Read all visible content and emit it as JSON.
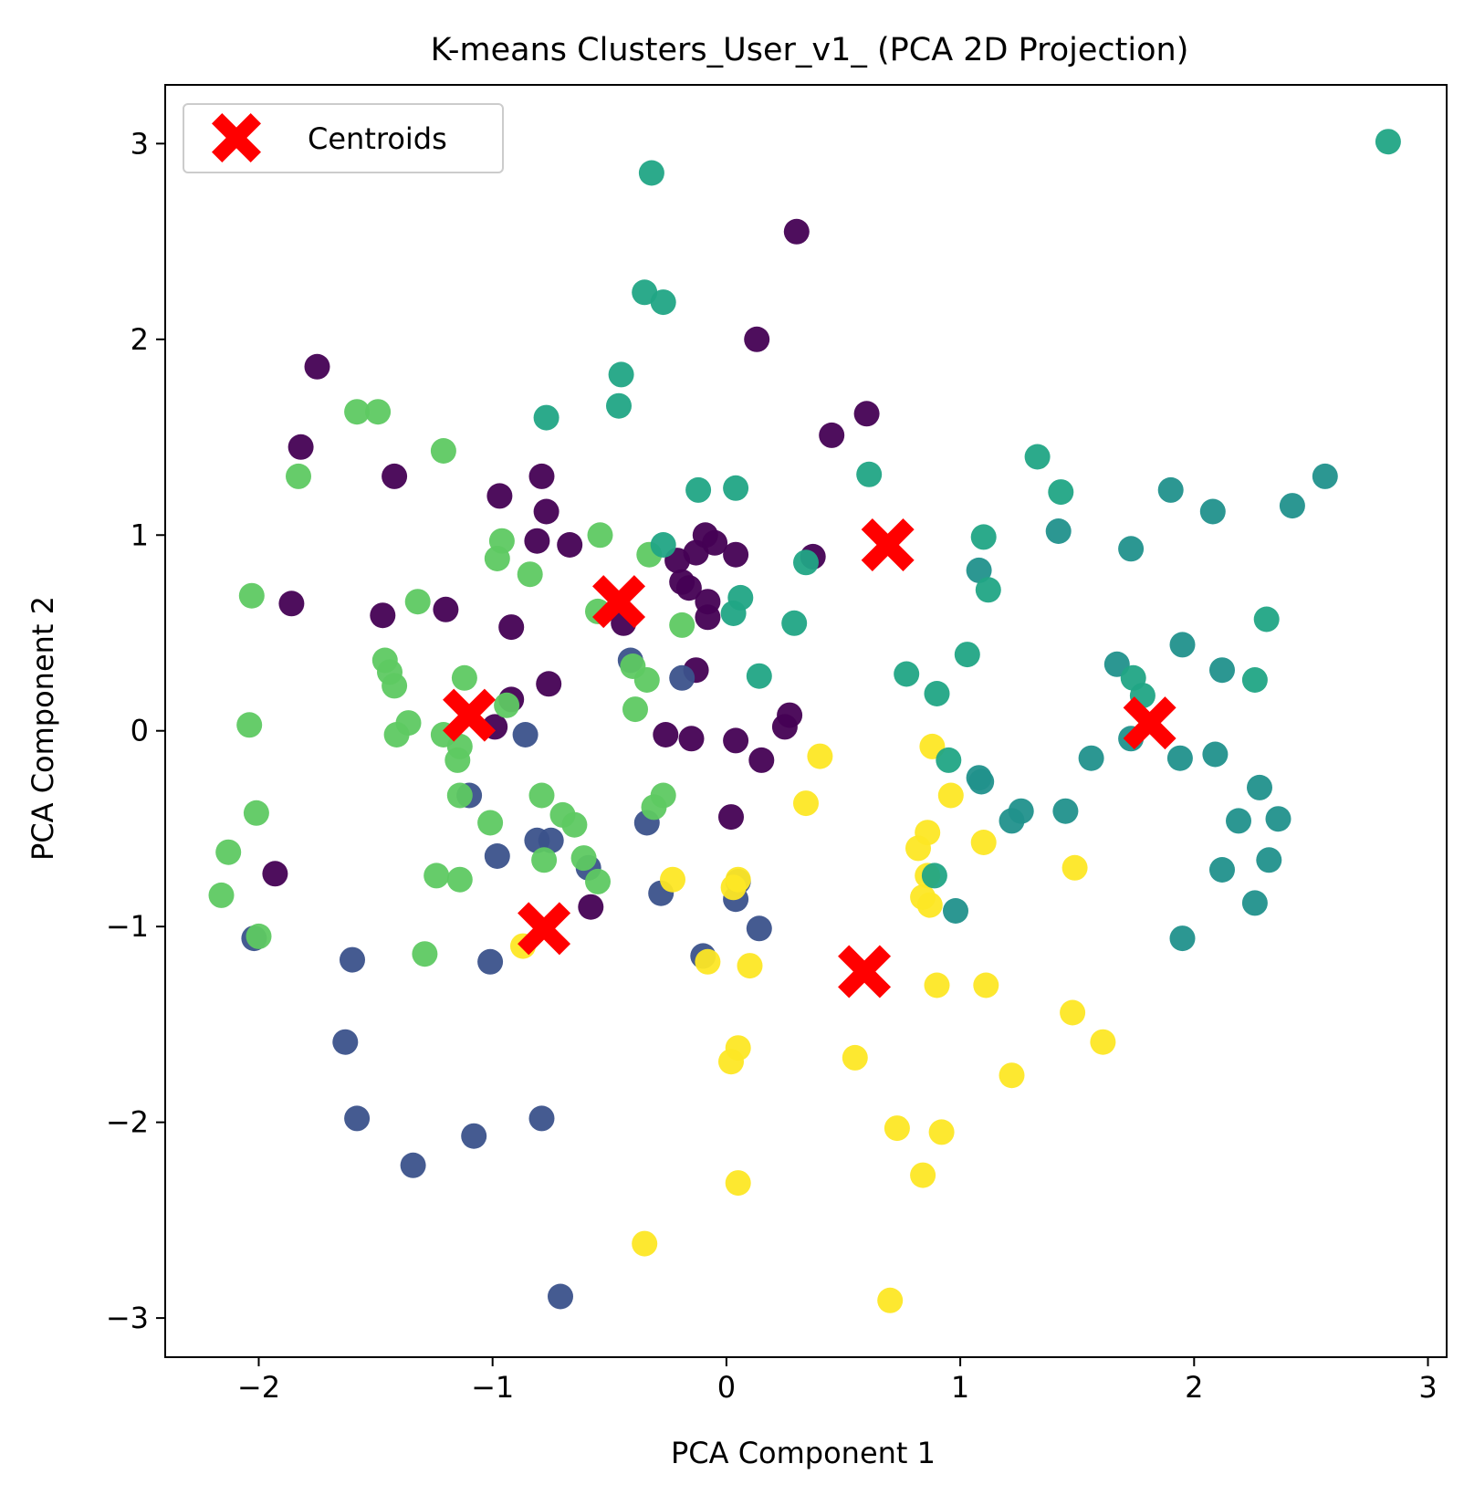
{
  "chart_data": {
    "type": "scatter",
    "title": "K-means Clusters_User_v1_ (PCA 2D Projection)",
    "xlabel": "PCA Component 1",
    "ylabel": "PCA Component 2",
    "xlim": [
      -2.4,
      3.08
    ],
    "ylim": [
      -3.2,
      3.3
    ],
    "grid": false,
    "legend": {
      "placement": "top-left",
      "entries": [
        "Centroids"
      ]
    },
    "xticks": [
      -2,
      -1,
      0,
      1,
      2,
      3
    ],
    "yticks": [
      -3,
      -2,
      -1,
      0,
      1,
      2,
      3
    ],
    "tick_labels_x": [
      "−2",
      "−1",
      "0",
      "1",
      "2",
      "3"
    ],
    "tick_labels_y": [
      "−3",
      "−2",
      "−1",
      "0",
      "1",
      "2",
      "3"
    ],
    "cluster_colors": [
      "#440154",
      "#3b528b",
      "#21918c",
      "#5ec962",
      "#fde725",
      "#21a585"
    ],
    "centroid_color": "#ff0000",
    "points": [
      {
        "cluster": 0,
        "x": -1.75,
        "y": 1.86
      },
      {
        "cluster": 0,
        "x": -1.82,
        "y": 1.45
      },
      {
        "cluster": 0,
        "x": -1.42,
        "y": 1.3
      },
      {
        "cluster": 0,
        "x": -1.86,
        "y": 0.65
      },
      {
        "cluster": 0,
        "x": -1.47,
        "y": 0.59
      },
      {
        "cluster": 0,
        "x": -1.2,
        "y": 0.62
      },
      {
        "cluster": 0,
        "x": -0.97,
        "y": 1.2
      },
      {
        "cluster": 0,
        "x": -0.79,
        "y": 1.3
      },
      {
        "cluster": 0,
        "x": -0.77,
        "y": 1.12
      },
      {
        "cluster": 0,
        "x": -0.81,
        "y": 0.97
      },
      {
        "cluster": 0,
        "x": -0.67,
        "y": 0.95
      },
      {
        "cluster": 0,
        "x": -0.92,
        "y": 0.53
      },
      {
        "cluster": 0,
        "x": -0.92,
        "y": 0.16
      },
      {
        "cluster": 0,
        "x": -0.76,
        "y": 0.24
      },
      {
        "cluster": 0,
        "x": -0.99,
        "y": 0.02
      },
      {
        "cluster": 0,
        "x": -1.93,
        "y": -0.73
      },
      {
        "cluster": 0,
        "x": -0.58,
        "y": -0.9
      },
      {
        "cluster": 0,
        "x": -0.44,
        "y": 0.55
      },
      {
        "cluster": 0,
        "x": -0.21,
        "y": 0.87
      },
      {
        "cluster": 0,
        "x": -0.13,
        "y": 0.91
      },
      {
        "cluster": 0,
        "x": -0.09,
        "y": 1.0
      },
      {
        "cluster": 0,
        "x": -0.05,
        "y": 0.96
      },
      {
        "cluster": 0,
        "x": 0.04,
        "y": 0.9
      },
      {
        "cluster": 0,
        "x": -0.19,
        "y": 0.76
      },
      {
        "cluster": 0,
        "x": -0.16,
        "y": 0.73
      },
      {
        "cluster": 0,
        "x": -0.08,
        "y": 0.66
      },
      {
        "cluster": 0,
        "x": -0.08,
        "y": 0.58
      },
      {
        "cluster": 0,
        "x": -0.13,
        "y": 0.31
      },
      {
        "cluster": 0,
        "x": -0.26,
        "y": -0.02
      },
      {
        "cluster": 0,
        "x": -0.15,
        "y": -0.04
      },
      {
        "cluster": 0,
        "x": 0.04,
        "y": -0.05
      },
      {
        "cluster": 0,
        "x": 0.15,
        "y": -0.15
      },
      {
        "cluster": 0,
        "x": 0.02,
        "y": -0.44
      },
      {
        "cluster": 0,
        "x": 0.27,
        "y": 0.08
      },
      {
        "cluster": 0,
        "x": 0.25,
        "y": 0.02
      },
      {
        "cluster": 0,
        "x": 0.3,
        "y": 2.55
      },
      {
        "cluster": 0,
        "x": 0.13,
        "y": 2.0
      },
      {
        "cluster": 0,
        "x": 0.45,
        "y": 1.51
      },
      {
        "cluster": 0,
        "x": 0.6,
        "y": 1.62
      },
      {
        "cluster": 0,
        "x": 0.37,
        "y": 0.89
      },
      {
        "cluster": 1,
        "x": -2.02,
        "y": -1.06
      },
      {
        "cluster": 1,
        "x": -1.6,
        "y": -1.17
      },
      {
        "cluster": 1,
        "x": -1.63,
        "y": -1.59
      },
      {
        "cluster": 1,
        "x": -1.58,
        "y": -1.98
      },
      {
        "cluster": 1,
        "x": -1.34,
        "y": -2.22
      },
      {
        "cluster": 1,
        "x": -1.08,
        "y": -2.07
      },
      {
        "cluster": 1,
        "x": -1.01,
        "y": -1.18
      },
      {
        "cluster": 1,
        "x": -0.98,
        "y": -0.64
      },
      {
        "cluster": 1,
        "x": -1.1,
        "y": -0.33
      },
      {
        "cluster": 1,
        "x": -0.86,
        "y": -0.02
      },
      {
        "cluster": 1,
        "x": -0.81,
        "y": -0.56
      },
      {
        "cluster": 1,
        "x": -0.75,
        "y": -0.56
      },
      {
        "cluster": 1,
        "x": -0.59,
        "y": -0.7
      },
      {
        "cluster": 1,
        "x": -0.79,
        "y": -1.98
      },
      {
        "cluster": 1,
        "x": -0.71,
        "y": -2.89
      },
      {
        "cluster": 1,
        "x": -0.41,
        "y": 0.36
      },
      {
        "cluster": 1,
        "x": -0.34,
        "y": -0.47
      },
      {
        "cluster": 1,
        "x": -0.28,
        "y": -0.83
      },
      {
        "cluster": 1,
        "x": -0.19,
        "y": 0.27
      },
      {
        "cluster": 1,
        "x": -0.1,
        "y": -1.15
      },
      {
        "cluster": 1,
        "x": 0.05,
        "y": -0.77
      },
      {
        "cluster": 1,
        "x": 0.04,
        "y": -0.86
      },
      {
        "cluster": 1,
        "x": 0.14,
        "y": -1.01
      },
      {
        "cluster": 2,
        "x": 1.9,
        "y": 1.23
      },
      {
        "cluster": 2,
        "x": 2.08,
        "y": 1.12
      },
      {
        "cluster": 2,
        "x": 2.42,
        "y": 1.15
      },
      {
        "cluster": 2,
        "x": 2.56,
        "y": 1.3
      },
      {
        "cluster": 2,
        "x": 1.42,
        "y": 1.02
      },
      {
        "cluster": 2,
        "x": 1.73,
        "y": 0.93
      },
      {
        "cluster": 2,
        "x": 1.08,
        "y": 0.82
      },
      {
        "cluster": 2,
        "x": 1.95,
        "y": 0.44
      },
      {
        "cluster": 2,
        "x": 1.67,
        "y": 0.34
      },
      {
        "cluster": 2,
        "x": 2.12,
        "y": 0.31
      },
      {
        "cluster": 2,
        "x": 1.73,
        "y": -0.04
      },
      {
        "cluster": 2,
        "x": 1.56,
        "y": -0.14
      },
      {
        "cluster": 2,
        "x": 1.94,
        "y": -0.14
      },
      {
        "cluster": 2,
        "x": 2.09,
        "y": -0.12
      },
      {
        "cluster": 2,
        "x": 1.08,
        "y": -0.24
      },
      {
        "cluster": 2,
        "x": 1.09,
        "y": -0.26
      },
      {
        "cluster": 2,
        "x": 2.28,
        "y": -0.29
      },
      {
        "cluster": 2,
        "x": 1.26,
        "y": -0.41
      },
      {
        "cluster": 2,
        "x": 1.22,
        "y": -0.46
      },
      {
        "cluster": 2,
        "x": 1.45,
        "y": -0.41
      },
      {
        "cluster": 2,
        "x": 2.19,
        "y": -0.46
      },
      {
        "cluster": 2,
        "x": 2.36,
        "y": -0.45
      },
      {
        "cluster": 2,
        "x": 2.32,
        "y": -0.66
      },
      {
        "cluster": 2,
        "x": 2.12,
        "y": -0.71
      },
      {
        "cluster": 2,
        "x": 2.26,
        "y": -0.88
      },
      {
        "cluster": 2,
        "x": 0.98,
        "y": -0.92
      },
      {
        "cluster": 2,
        "x": 1.95,
        "y": -1.06
      },
      {
        "cluster": 3,
        "x": -1.58,
        "y": 1.63
      },
      {
        "cluster": 3,
        "x": -1.49,
        "y": 1.63
      },
      {
        "cluster": 3,
        "x": -1.83,
        "y": 1.3
      },
      {
        "cluster": 3,
        "x": -1.21,
        "y": 1.43
      },
      {
        "cluster": 3,
        "x": -2.03,
        "y": 0.69
      },
      {
        "cluster": 3,
        "x": -1.32,
        "y": 0.66
      },
      {
        "cluster": 3,
        "x": -1.46,
        "y": 0.36
      },
      {
        "cluster": 3,
        "x": -1.44,
        "y": 0.3
      },
      {
        "cluster": 3,
        "x": -1.42,
        "y": 0.23
      },
      {
        "cluster": 3,
        "x": -1.36,
        "y": 0.04
      },
      {
        "cluster": 3,
        "x": -1.41,
        "y": -0.02
      },
      {
        "cluster": 3,
        "x": -2.04,
        "y": 0.03
      },
      {
        "cluster": 3,
        "x": -1.21,
        "y": -0.02
      },
      {
        "cluster": 3,
        "x": -1.14,
        "y": -0.08
      },
      {
        "cluster": 3,
        "x": -1.15,
        "y": -0.15
      },
      {
        "cluster": 3,
        "x": -1.12,
        "y": 0.27
      },
      {
        "cluster": 3,
        "x": -1.14,
        "y": -0.33
      },
      {
        "cluster": 3,
        "x": -2.01,
        "y": -0.42
      },
      {
        "cluster": 3,
        "x": -2.13,
        "y": -0.62
      },
      {
        "cluster": 3,
        "x": -2.16,
        "y": -0.84
      },
      {
        "cluster": 3,
        "x": -2.0,
        "y": -1.05
      },
      {
        "cluster": 3,
        "x": -1.29,
        "y": -1.14
      },
      {
        "cluster": 3,
        "x": -1.24,
        "y": -0.74
      },
      {
        "cluster": 3,
        "x": -1.14,
        "y": -0.76
      },
      {
        "cluster": 3,
        "x": -1.01,
        "y": -0.47
      },
      {
        "cluster": 3,
        "x": -0.96,
        "y": 0.97
      },
      {
        "cluster": 3,
        "x": -0.98,
        "y": 0.88
      },
      {
        "cluster": 3,
        "x": -0.84,
        "y": 0.8
      },
      {
        "cluster": 3,
        "x": -0.54,
        "y": 1.0
      },
      {
        "cluster": 3,
        "x": -0.55,
        "y": 0.61
      },
      {
        "cluster": 3,
        "x": -0.94,
        "y": 0.13
      },
      {
        "cluster": 3,
        "x": -0.79,
        "y": -0.33
      },
      {
        "cluster": 3,
        "x": -0.7,
        "y": -0.43
      },
      {
        "cluster": 3,
        "x": -0.65,
        "y": -0.48
      },
      {
        "cluster": 3,
        "x": -0.78,
        "y": -0.66
      },
      {
        "cluster": 3,
        "x": -0.61,
        "y": -0.65
      },
      {
        "cluster": 3,
        "x": -0.55,
        "y": -0.77
      },
      {
        "cluster": 3,
        "x": -0.33,
        "y": 0.9
      },
      {
        "cluster": 3,
        "x": -0.4,
        "y": 0.33
      },
      {
        "cluster": 3,
        "x": -0.34,
        "y": 0.26
      },
      {
        "cluster": 3,
        "x": -0.39,
        "y": 0.11
      },
      {
        "cluster": 3,
        "x": -0.27,
        "y": -0.33
      },
      {
        "cluster": 3,
        "x": -0.31,
        "y": -0.39
      },
      {
        "cluster": 3,
        "x": -0.19,
        "y": 0.54
      },
      {
        "cluster": 4,
        "x": 0.4,
        "y": -0.13
      },
      {
        "cluster": 4,
        "x": 0.34,
        "y": -0.37
      },
      {
        "cluster": 4,
        "x": 0.88,
        "y": -0.08
      },
      {
        "cluster": 4,
        "x": 0.96,
        "y": -0.33
      },
      {
        "cluster": 4,
        "x": 0.86,
        "y": -0.52
      },
      {
        "cluster": 4,
        "x": 0.82,
        "y": -0.6
      },
      {
        "cluster": 4,
        "x": 1.1,
        "y": -0.57
      },
      {
        "cluster": 4,
        "x": 0.86,
        "y": -0.74
      },
      {
        "cluster": 4,
        "x": 0.84,
        "y": -0.85
      },
      {
        "cluster": 4,
        "x": 0.87,
        "y": -0.89
      },
      {
        "cluster": 4,
        "x": 1.49,
        "y": -0.7
      },
      {
        "cluster": 4,
        "x": -0.23,
        "y": -0.76
      },
      {
        "cluster": 4,
        "x": 0.05,
        "y": -0.76
      },
      {
        "cluster": 4,
        "x": 0.03,
        "y": -0.8
      },
      {
        "cluster": 4,
        "x": -0.08,
        "y": -1.18
      },
      {
        "cluster": 4,
        "x": 0.1,
        "y": -1.2
      },
      {
        "cluster": 4,
        "x": 0.9,
        "y": -1.3
      },
      {
        "cluster": 4,
        "x": 1.11,
        "y": -1.3
      },
      {
        "cluster": 4,
        "x": 1.48,
        "y": -1.44
      },
      {
        "cluster": 4,
        "x": 1.61,
        "y": -1.59
      },
      {
        "cluster": 4,
        "x": 0.05,
        "y": -1.62
      },
      {
        "cluster": 4,
        "x": 0.02,
        "y": -1.69
      },
      {
        "cluster": 4,
        "x": 0.55,
        "y": -1.67
      },
      {
        "cluster": 4,
        "x": 1.22,
        "y": -1.76
      },
      {
        "cluster": 4,
        "x": 0.73,
        "y": -2.03
      },
      {
        "cluster": 4,
        "x": 0.92,
        "y": -2.05
      },
      {
        "cluster": 4,
        "x": 0.84,
        "y": -2.27
      },
      {
        "cluster": 4,
        "x": 0.05,
        "y": -2.31
      },
      {
        "cluster": 4,
        "x": -0.35,
        "y": -2.62
      },
      {
        "cluster": 4,
        "x": 0.7,
        "y": -2.91
      },
      {
        "cluster": 4,
        "x": -0.87,
        "y": -1.1
      },
      {
        "cluster": 5,
        "x": 2.83,
        "y": 3.01
      },
      {
        "cluster": 5,
        "x": -0.32,
        "y": 2.85
      },
      {
        "cluster": 5,
        "x": -0.35,
        "y": 2.24
      },
      {
        "cluster": 5,
        "x": -0.27,
        "y": 2.19
      },
      {
        "cluster": 5,
        "x": -0.45,
        "y": 1.82
      },
      {
        "cluster": 5,
        "x": -0.46,
        "y": 1.66
      },
      {
        "cluster": 5,
        "x": -0.77,
        "y": 1.6
      },
      {
        "cluster": 5,
        "x": 0.61,
        "y": 1.31
      },
      {
        "cluster": 5,
        "x": 0.04,
        "y": 1.24
      },
      {
        "cluster": 5,
        "x": -0.12,
        "y": 1.23
      },
      {
        "cluster": 5,
        "x": 1.33,
        "y": 1.4
      },
      {
        "cluster": 5,
        "x": 1.43,
        "y": 1.22
      },
      {
        "cluster": 5,
        "x": 1.1,
        "y": 0.99
      },
      {
        "cluster": 5,
        "x": 1.12,
        "y": 0.72
      },
      {
        "cluster": 5,
        "x": -0.27,
        "y": 0.95
      },
      {
        "cluster": 5,
        "x": 0.34,
        "y": 0.86
      },
      {
        "cluster": 5,
        "x": 0.06,
        "y": 0.68
      },
      {
        "cluster": 5,
        "x": 0.03,
        "y": 0.6
      },
      {
        "cluster": 5,
        "x": 0.29,
        "y": 0.55
      },
      {
        "cluster": 5,
        "x": 0.14,
        "y": 0.28
      },
      {
        "cluster": 5,
        "x": 0.77,
        "y": 0.29
      },
      {
        "cluster": 5,
        "x": 0.9,
        "y": 0.19
      },
      {
        "cluster": 5,
        "x": 1.03,
        "y": 0.39
      },
      {
        "cluster": 5,
        "x": 2.31,
        "y": 0.57
      },
      {
        "cluster": 5,
        "x": 2.26,
        "y": 0.26
      },
      {
        "cluster": 5,
        "x": 1.74,
        "y": 0.27
      },
      {
        "cluster": 5,
        "x": 1.78,
        "y": 0.18
      },
      {
        "cluster": 5,
        "x": 0.95,
        "y": -0.15
      },
      {
        "cluster": 5,
        "x": 0.89,
        "y": -0.74
      }
    ],
    "centroids": [
      {
        "x": 0.69,
        "y": 0.95
      },
      {
        "x": -0.46,
        "y": 0.66
      },
      {
        "x": -1.1,
        "y": 0.08
      },
      {
        "x": 1.81,
        "y": 0.04
      },
      {
        "x": -0.78,
        "y": -1.01
      },
      {
        "x": 0.59,
        "y": -1.23
      }
    ]
  }
}
